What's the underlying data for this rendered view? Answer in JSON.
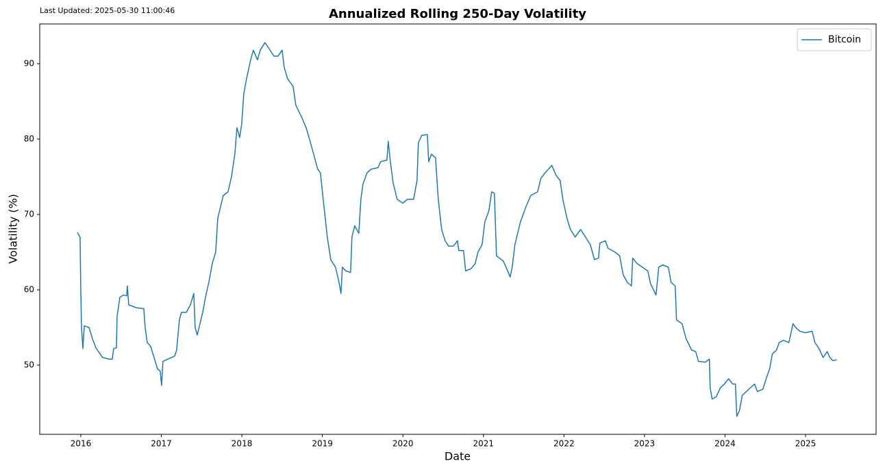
{
  "chart_data": {
    "type": "line",
    "title": "Annualized Rolling 250-Day Volatility",
    "annotation": "Last Updated: 2025-05-30 11:00:46",
    "x_label": "Date",
    "y_label": "Volatility (%)",
    "xlim": [
      2015.49,
      2025.876
    ],
    "xticks": [
      2016,
      2017,
      2018,
      2019,
      2020,
      2021,
      2022,
      2023,
      2024,
      2025
    ],
    "ylim": [
      40.82,
      95.27
    ],
    "yticks": [
      50,
      60,
      70,
      80,
      90
    ],
    "grid": false,
    "legend": "upper right",
    "x": [
      2015.957,
      2015.991,
      2016.0,
      2016.009,
      2016.026,
      2016.043,
      2016.102,
      2016.145,
      2016.187,
      2016.272,
      2016.357,
      2016.391,
      2016.408,
      2016.442,
      2016.451,
      2016.485,
      2016.527,
      2016.57,
      2016.578,
      2016.595,
      2016.697,
      2016.782,
      2016.799,
      2016.825,
      2016.867,
      2016.91,
      2016.952,
      2016.986,
      2017.003,
      2017.02,
      2017.08,
      2017.165,
      2017.19,
      2017.224,
      2017.25,
      2017.31,
      2017.361,
      2017.403,
      2017.42,
      2017.446,
      2017.48,
      2017.514,
      2017.548,
      2017.59,
      2017.633,
      2017.675,
      2017.701,
      2017.735,
      2017.769,
      2017.828,
      2017.871,
      2017.913,
      2017.939,
      2017.973,
      2017.998,
      2018.024,
      2018.058,
      2018.109,
      2018.143,
      2018.194,
      2018.228,
      2018.287,
      2018.338,
      2018.398,
      2018.449,
      2018.5,
      2018.526,
      2018.568,
      2018.636,
      2018.67,
      2018.738,
      2018.798,
      2018.84,
      2018.891,
      2018.942,
      2018.976,
      2019.01,
      2019.061,
      2019.104,
      2019.163,
      2019.206,
      2019.231,
      2019.248,
      2019.291,
      2019.35,
      2019.367,
      2019.401,
      2019.452,
      2019.478,
      2019.503,
      2019.554,
      2019.605,
      2019.69,
      2019.724,
      2019.801,
      2019.818,
      2019.844,
      2019.878,
      2019.929,
      2019.997,
      2020.056,
      2020.133,
      2020.175,
      2020.192,
      2020.235,
      2020.303,
      2020.32,
      2020.354,
      2020.405,
      2020.439,
      2020.481,
      2020.524,
      2020.566,
      2020.626,
      2020.677,
      2020.694,
      2020.753,
      2020.779,
      2020.847,
      2020.898,
      2020.932,
      2020.983,
      2021.017,
      2021.068,
      2021.102,
      2021.136,
      2021.162,
      2021.247,
      2021.289,
      2021.332,
      2021.357,
      2021.391,
      2021.459,
      2021.527,
      2021.587,
      2021.672,
      2021.714,
      2021.765,
      2021.85,
      2021.901,
      2021.952,
      2021.986,
      2022.037,
      2022.08,
      2022.139,
      2022.207,
      2022.267,
      2022.327,
      2022.378,
      2022.429,
      2022.446,
      2022.514,
      2022.548,
      2022.633,
      2022.692,
      2022.735,
      2022.786,
      2022.837,
      2022.854,
      2022.905,
      2022.973,
      2023.041,
      2023.075,
      2023.143,
      2023.177,
      2023.228,
      2023.296,
      2023.33,
      2023.381,
      2023.398,
      2023.466,
      2023.517,
      2023.585,
      2023.636,
      2023.67,
      2023.755,
      2023.806,
      2023.815,
      2023.84,
      2023.891,
      2023.942,
      2023.993,
      2024.044,
      2024.095,
      2024.129,
      2024.146,
      2024.18,
      2024.214,
      2024.265,
      2024.316,
      2024.367,
      2024.401,
      2024.469,
      2024.52,
      2024.554,
      2024.588,
      2024.639,
      2024.673,
      2024.724,
      2024.793,
      2024.844,
      2024.878,
      2024.929,
      2024.997,
      2025.082,
      2025.116,
      2025.167,
      2025.218,
      2025.269,
      2025.303,
      2025.337,
      2025.388
    ],
    "series": [
      {
        "name": "Bitcoin",
        "color": "#1f77b4",
        "values": [
          67.6,
          67.0,
          60,
          55,
          52.2,
          55.2,
          55,
          53.5,
          52.3,
          51,
          50.8,
          50.8,
          52.2,
          52.3,
          56.5,
          59,
          59.3,
          59.2,
          60.5,
          58,
          57.6,
          57.5,
          55,
          53,
          52.5,
          51,
          49.5,
          49.2,
          47.3,
          50.5,
          50.8,
          51.2,
          52,
          56,
          57,
          57,
          58,
          59.5,
          55,
          54,
          55.5,
          57,
          59,
          61,
          63.5,
          65,
          69.5,
          71,
          72.5,
          73,
          75,
          78,
          81.5,
          80.2,
          82,
          86,
          88,
          90.5,
          91.8,
          90.5,
          91.8,
          92.8,
          92,
          91,
          91,
          91.8,
          89.5,
          88,
          87,
          84.5,
          83,
          81.5,
          80,
          78,
          76,
          75.5,
          72,
          67,
          64,
          63,
          61,
          59.5,
          63,
          62.5,
          62.3,
          67,
          68.5,
          67.5,
          72,
          74,
          75.5,
          76,
          76.2,
          77,
          77.2,
          79.7,
          77,
          74.2,
          72,
          71.5,
          72,
          72,
          74.5,
          79.5,
          80.5,
          80.6,
          77,
          78,
          77.5,
          72,
          68,
          66.5,
          65.8,
          65.8,
          66.5,
          65.2,
          65.2,
          62.5,
          62.8,
          63.5,
          65,
          66,
          69,
          70.5,
          73,
          72.8,
          64.5,
          63.8,
          62.8,
          61.7,
          63,
          66,
          69,
          71,
          72.5,
          73,
          74.8,
          75.5,
          76.5,
          75.2,
          74.5,
          72,
          69.5,
          68,
          67,
          68,
          67,
          66,
          64,
          64.2,
          66.2,
          66.5,
          65.5,
          65,
          64.5,
          62,
          61,
          60.5,
          64.2,
          63.5,
          63,
          62.5,
          60.8,
          59.3,
          63,
          63.3,
          63,
          61,
          60.5,
          56,
          55.5,
          53.5,
          52,
          51.8,
          50.5,
          50.4,
          50.8,
          47,
          45.5,
          45.8,
          47,
          47.5,
          48.2,
          47.5,
          47.5,
          43.2,
          44,
          46,
          46.5,
          47,
          47.5,
          46.5,
          46.8,
          48.5,
          49.5,
          51.5,
          52,
          53,
          53.3,
          53,
          55.5,
          55,
          54.5,
          54.3,
          54.5,
          53,
          52.2,
          51,
          51.8,
          51,
          50.6,
          50.7
        ]
      }
    ]
  }
}
